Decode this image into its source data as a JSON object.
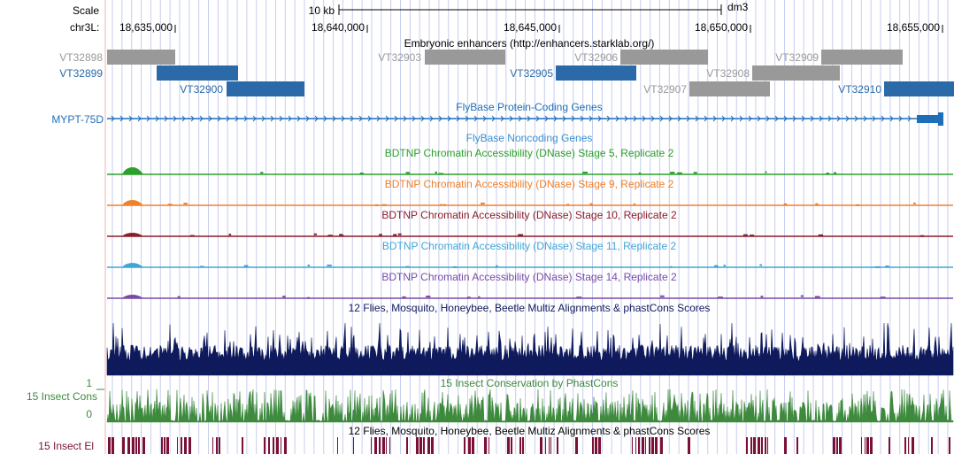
{
  "scale": {
    "label": "Scale",
    "bar_label": "10 kb",
    "assembly": "dm3"
  },
  "ruler": {
    "chrom_label": "chr3L:",
    "ticks": [
      "18,635,000",
      "18,640,000",
      "18,645,000",
      "18,650,000",
      "18,655,000"
    ]
  },
  "colors": {
    "gray": "#999999",
    "blue": "#2a6aa8",
    "noncoding": "#3a8fd0",
    "stage5": "#2ba02b",
    "stage9": "#f0802a",
    "stage10": "#8c1d2a",
    "stage11": "#3fa6d6",
    "stage14": "#7a4aa8",
    "multiz": "#0f1a5c",
    "cons": "#3d8a3d",
    "elements": "#7b1037",
    "grid": "#c7cdef"
  },
  "tracks": {
    "enhancers": {
      "title": "Embryonic enhancers (http://enhancers.starklab.org/)",
      "items": [
        {
          "label": "VT32898",
          "color": "gray"
        },
        {
          "label": "VT32899",
          "color": "blue"
        },
        {
          "label": "VT32900",
          "color": "blue"
        },
        {
          "label": "VT32903",
          "color": "gray"
        },
        {
          "label": "VT32905",
          "color": "blue"
        },
        {
          "label": "VT32906",
          "color": "gray"
        },
        {
          "label": "VT32907",
          "color": "gray"
        },
        {
          "label": "VT32908",
          "color": "gray"
        },
        {
          "label": "VT32909",
          "color": "gray"
        },
        {
          "label": "VT32910",
          "color": "blue"
        }
      ]
    },
    "protein_coding": {
      "title": "FlyBase Protein-Coding Genes",
      "gene": "MYPT-75D"
    },
    "noncoding": {
      "title": "FlyBase Noncoding Genes"
    },
    "dnase": [
      {
        "title": "BDTNP Chromatin Accessibility (DNase) Stage 5, Replicate 2",
        "color": "stage5"
      },
      {
        "title": "BDTNP Chromatin Accessibility (DNase) Stage 9, Replicate 2",
        "color": "stage9"
      },
      {
        "title": "BDTNP Chromatin Accessibility (DNase) Stage 10, Replicate 2",
        "color": "stage10"
      },
      {
        "title": "BDTNP Chromatin Accessibility (DNase) Stage 11, Replicate 2",
        "color": "stage11"
      },
      {
        "title": "BDTNP Chromatin Accessibility (DNase) Stage 14, Replicate 2",
        "color": "stage14"
      }
    ],
    "multiz": {
      "title": "12 Flies, Mosquito, Honeybee, Beetle Multiz Alignments & phastCons Scores"
    },
    "insect_cons": {
      "title": "15 Insect Conservation by PhastCons",
      "side_label": "15 Insect Cons",
      "axis_max": "1",
      "axis_min": "0"
    },
    "insect_el": {
      "title": "12 Flies, Mosquito, Honeybee, Beetle Multiz Alignments & phastCons Scores",
      "side_label": "15 Insect El"
    }
  }
}
